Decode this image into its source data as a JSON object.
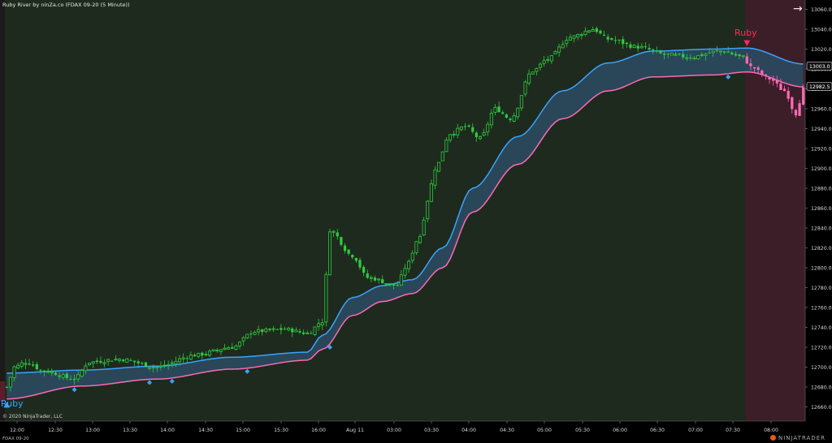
{
  "header": {
    "title": "Ruby River by ninZa.co (FDAX 09-20 (5 Minute))",
    "arrow_icon": "arrow-right-icon"
  },
  "footer": {
    "copyright": "© 2020 NinjaTrader, LLC",
    "instrument": "FDAX 09-20",
    "brand": "NINJATRADER"
  },
  "colors": {
    "background_bull": "#1e2a1e",
    "background_bear": "#3b1e28",
    "bull_candle": "#2ecc40",
    "bear_candle": "#ff69b4",
    "band_upper": "#3aa3ff",
    "band_lower": "#ff69b4",
    "band_fill": "#2b4c63",
    "buy_signal": "#3aa3ff",
    "sell_signal": "#ff2d55"
  },
  "chart_data": {
    "type": "candlestick",
    "title": "Ruby River by ninZa.co (FDAX 09-20 (5 Minute))",
    "ylim": [
      12650,
      13070
    ],
    "y_ticks": [
      12660,
      12680,
      12700,
      12720,
      12740,
      12760,
      12780,
      12800,
      12820,
      12840,
      12860,
      12880,
      12900,
      12920,
      12940,
      12960,
      12980,
      13000,
      13020,
      13040,
      13060
    ],
    "y_tick_labels": [
      "12660.0",
      "12680.0",
      "12700.0",
      "12720.0",
      "12740.0",
      "12760.0",
      "12780.0",
      "12800.0",
      "12820.0",
      "12840.0",
      "12860.0",
      "12880.0",
      "12900.0",
      "12920.0",
      "12940.0",
      "12960.0",
      "12980.0",
      "13000.0",
      "13020.0",
      "13040.0",
      "13060.0"
    ],
    "x_ticks": [
      "12:00",
      "12:30",
      "13:00",
      "13:30",
      "14:00",
      "14:30",
      "15:00",
      "15:30",
      "16:00",
      "Aug 11",
      "03:00",
      "03:30",
      "04:00",
      "04:30",
      "05:00",
      "05:30",
      "06:00",
      "06:30",
      "07:00",
      "07:30",
      "08:00"
    ],
    "price_labels": [
      {
        "value": 13003.0,
        "label": "13003.0"
      },
      {
        "value": 12982.5,
        "label": "12982.5"
      }
    ],
    "signals": [
      {
        "type": "buy",
        "label": "Ruby",
        "bar_index": 0,
        "price": 12674
      },
      {
        "type": "sell",
        "label": "Ruby",
        "bar_index": 197,
        "price": 13024
      }
    ],
    "regime_change_bar": 197,
    "band_upper_anchor": [
      [
        0,
        12694
      ],
      [
        20,
        12697
      ],
      [
        40,
        12701
      ],
      [
        60,
        12710
      ],
      [
        80,
        12715
      ],
      [
        84,
        12732
      ],
      [
        92,
        12770
      ],
      [
        100,
        12782
      ],
      [
        108,
        12788
      ],
      [
        116,
        12820
      ],
      [
        124,
        12880
      ],
      [
        136,
        12932
      ],
      [
        148,
        12978
      ],
      [
        160,
        13006
      ],
      [
        172,
        13018
      ],
      [
        188,
        13020
      ],
      [
        197,
        13021
      ],
      [
        212,
        13005
      ]
    ],
    "band_lower_anchor": [
      [
        0,
        12668
      ],
      [
        20,
        12681
      ],
      [
        40,
        12688
      ],
      [
        60,
        12698
      ],
      [
        80,
        12707
      ],
      [
        84,
        12718
      ],
      [
        92,
        12752
      ],
      [
        100,
        12766
      ],
      [
        108,
        12774
      ],
      [
        116,
        12800
      ],
      [
        124,
        12856
      ],
      [
        136,
        12904
      ],
      [
        148,
        12950
      ],
      [
        160,
        12978
      ],
      [
        172,
        12992
      ],
      [
        188,
        12994
      ],
      [
        197,
        12997
      ],
      [
        212,
        12982
      ]
    ],
    "close_anchor": [
      [
        0,
        12680
      ],
      [
        2,
        12700
      ],
      [
        5,
        12705
      ],
      [
        10,
        12696
      ],
      [
        18,
        12688
      ],
      [
        22,
        12705
      ],
      [
        30,
        12708
      ],
      [
        40,
        12700
      ],
      [
        50,
        12712
      ],
      [
        60,
        12720
      ],
      [
        66,
        12736
      ],
      [
        74,
        12738
      ],
      [
        80,
        12734
      ],
      [
        84,
        12746
      ],
      [
        86,
        12838
      ],
      [
        92,
        12812
      ],
      [
        96,
        12790
      ],
      [
        104,
        12782
      ],
      [
        106,
        12800
      ],
      [
        110,
        12832
      ],
      [
        112,
        12868
      ],
      [
        114,
        12900
      ],
      [
        118,
        12935
      ],
      [
        122,
        12942
      ],
      [
        126,
        12930
      ],
      [
        130,
        12960
      ],
      [
        134,
        12950
      ],
      [
        140,
        12998
      ],
      [
        144,
        13010
      ],
      [
        150,
        13032
      ],
      [
        156,
        13040
      ],
      [
        160,
        13030
      ],
      [
        168,
        13022
      ],
      [
        176,
        13014
      ],
      [
        182,
        13012
      ],
      [
        190,
        13018
      ],
      [
        196,
        13012
      ],
      [
        198,
        13002
      ],
      [
        203,
        12990
      ],
      [
        207,
        12978
      ],
      [
        210,
        12955
      ],
      [
        212,
        12980
      ]
    ]
  }
}
